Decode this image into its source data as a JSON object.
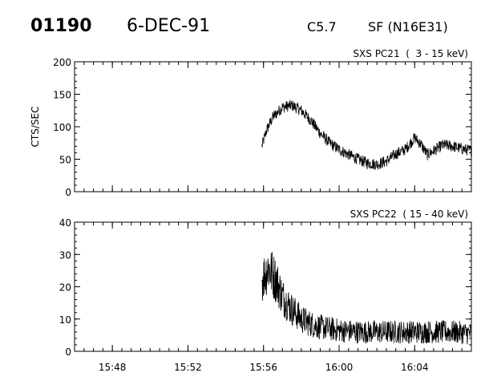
{
  "header": {
    "event_id": "01190",
    "date": "6-DEC-91",
    "flare_class": "C5.7",
    "location": "SF (N16E31)"
  },
  "chart_data": [
    {
      "type": "line",
      "title": "SXS PC21  (  3 - 15 keV)",
      "ylabel": "CTS/SEC",
      "xlabel": "",
      "xlim": [
        "15:46",
        "16:07"
      ],
      "ylim": [
        0,
        200
      ],
      "yticks": [
        0,
        50,
        100,
        150,
        200
      ],
      "yticks_labels": [
        "0",
        "50",
        "100",
        "150",
        "200"
      ],
      "xticks": [
        "15:48",
        "15:52",
        "15:56",
        "16:00",
        "16:04"
      ],
      "grid": false,
      "color": "#000000",
      "series": [
        {
          "x": [
            "15:55:55",
            "15:56:10",
            "15:56:30",
            "15:57:00",
            "15:57:30",
            "15:58:00",
            "15:58:30",
            "15:59:00",
            "15:59:30",
            "16:00:00",
            "16:00:30",
            "16:01:00",
            "16:01:30",
            "16:02:00",
            "16:02:30",
            "16:03:00",
            "16:03:30",
            "16:04:00",
            "16:04:20",
            "16:04:40",
            "16:05:00",
            "16:05:30",
            "16:06:00",
            "16:06:30",
            "16:07:00"
          ],
          "y": [
            70,
            95,
            115,
            130,
            133,
            125,
            110,
            90,
            75,
            65,
            57,
            50,
            44,
            42,
            47,
            58,
            65,
            83,
            73,
            57,
            63,
            72,
            70,
            66,
            63
          ],
          "noise": 9
        }
      ]
    },
    {
      "type": "line",
      "title": "SXS PC22  ( 15 - 40 keV)",
      "ylabel": "",
      "xlabel": "",
      "xlim": [
        "15:46",
        "16:07"
      ],
      "ylim": [
        0,
        40
      ],
      "yticks": [
        0,
        10,
        20,
        30,
        40
      ],
      "yticks_labels": [
        "0",
        "10",
        "20",
        "30",
        "40"
      ],
      "xticks": [
        "15:48",
        "15:52",
        "15:56",
        "16:00",
        "16:04"
      ],
      "xticks_labels": [
        "15:48",
        "15:52",
        "15:56",
        "16:00",
        "16:04"
      ],
      "grid": false,
      "color": "#000000",
      "series": [
        {
          "x": [
            "15:55:55",
            "15:56:15",
            "15:56:40",
            "15:57:00",
            "15:57:30",
            "15:58:00",
            "15:58:30",
            "15:59:00",
            "15:59:30",
            "16:00:00",
            "16:01:00",
            "16:02:00",
            "16:03:00",
            "16:04:00",
            "16:05:00",
            "16:06:00",
            "16:07:00"
          ],
          "y": [
            22,
            26,
            22,
            17,
            13,
            10,
            8.5,
            7.5,
            7,
            6.5,
            6,
            6,
            6,
            6,
            6,
            6,
            5.5
          ],
          "noise": 4.5
        }
      ]
    }
  ]
}
